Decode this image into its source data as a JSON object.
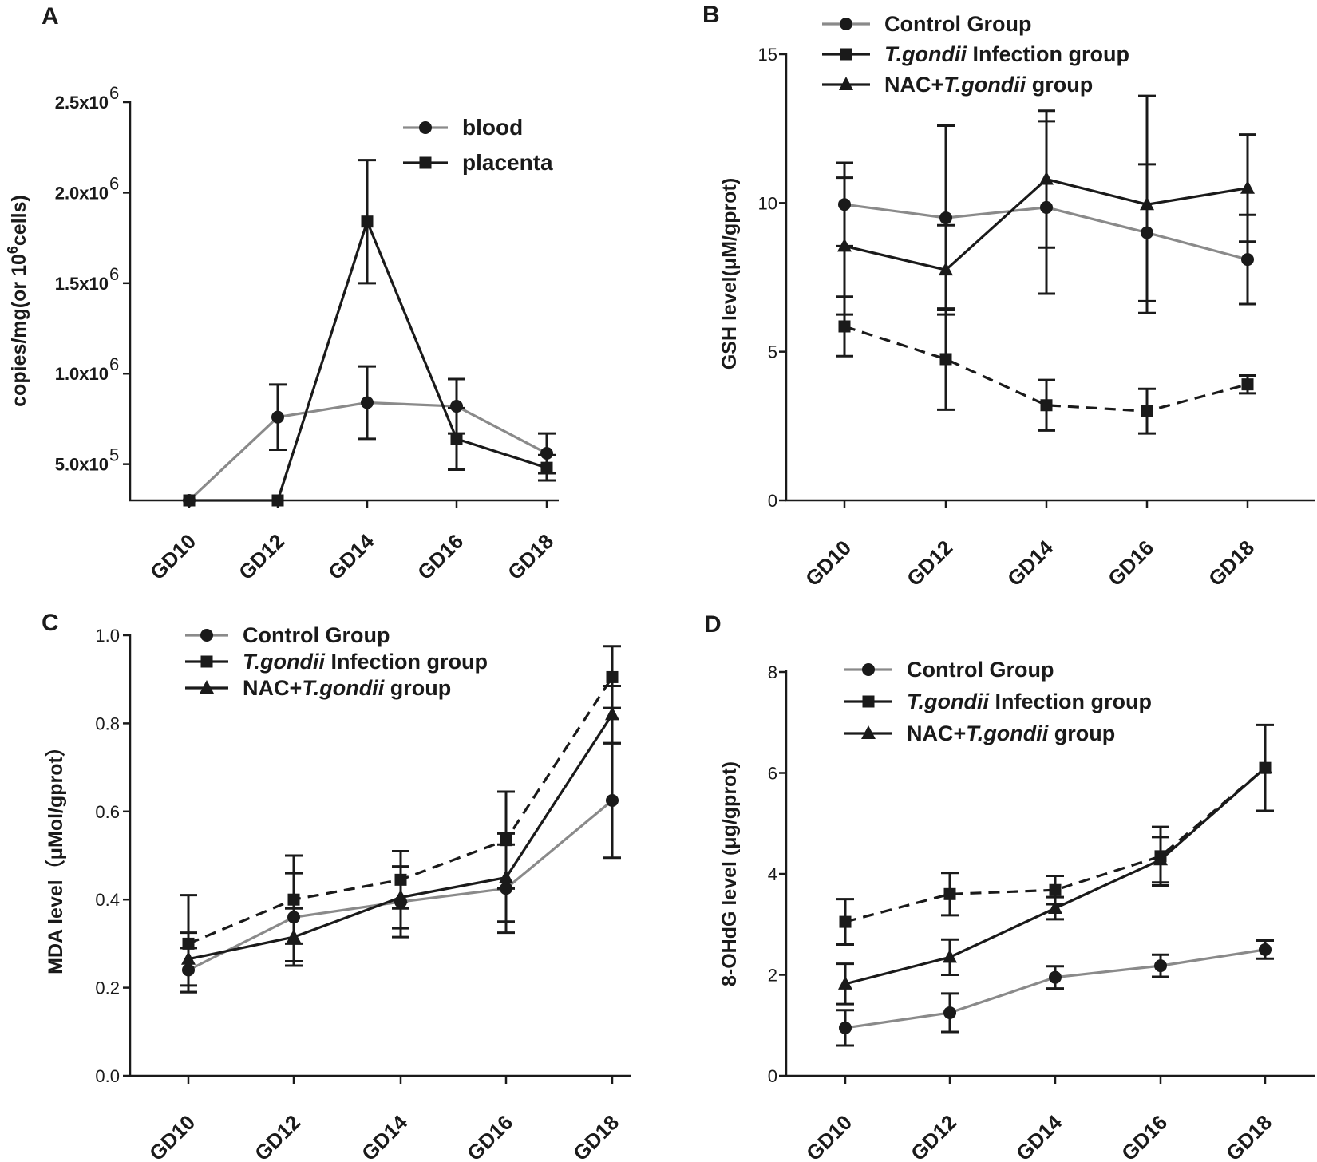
{
  "chart_data": [
    {
      "panel": "A",
      "type": "line",
      "ylabel": "copies/mg(or 10",
      "ylabel_sup": "6",
      "ylabel_tail": "cells)",
      "categories": [
        "GD10",
        "GD12",
        "GD14",
        "GD16",
        "GD18"
      ],
      "ylim": [
        300000,
        2500000
      ],
      "yticks": [
        {
          "value": 500000,
          "mant": "5.0x10",
          "exp": "5"
        },
        {
          "value": 1000000,
          "mant": "1.0x10",
          "exp": "6"
        },
        {
          "value": 1500000,
          "mant": "1.5x10",
          "exp": "6"
        },
        {
          "value": 2000000,
          "mant": "2.0x10",
          "exp": "6"
        },
        {
          "value": 2500000,
          "mant": "2.5x10",
          "exp": "6"
        }
      ],
      "series": [
        {
          "name": "blood",
          "color": "#8a8a8a",
          "marker": "circle",
          "dash": false,
          "values": [
            300000,
            760000,
            840000,
            820000,
            560000
          ],
          "errors": [
            0,
            180000,
            200000,
            150000,
            110000
          ]
        },
        {
          "name": "placenta",
          "color": "#1a1a1a",
          "marker": "square",
          "dash": false,
          "values": [
            300000,
            300000,
            1840000,
            640000,
            480000
          ],
          "errors": [
            0,
            0,
            340000,
            170000,
            70000
          ]
        }
      ]
    },
    {
      "panel": "B",
      "type": "line",
      "ylabel": "GSH level(μM/gprot)",
      "categories": [
        "GD10",
        "GD12",
        "GD14",
        "GD16",
        "GD18"
      ],
      "ylim": [
        0,
        15
      ],
      "yticks": [
        0,
        5,
        10,
        15
      ],
      "series": [
        {
          "name": "Control Group",
          "color": "#8a8a8a",
          "marker": "circle",
          "dash": false,
          "values": [
            9.95,
            9.5,
            9.85,
            9.0,
            8.1
          ],
          "errors": [
            1.4,
            3.1,
            2.9,
            2.3,
            1.5
          ]
        },
        {
          "name": "T.gondii Infection group",
          "name_ital": "T.gondii",
          "name_rest": " Infection group",
          "color": "#1a1a1a",
          "marker": "square",
          "dash": true,
          "values": [
            5.85,
            4.75,
            3.2,
            3.0,
            3.9
          ],
          "errors": [
            1.0,
            1.7,
            0.85,
            0.75,
            0.3
          ]
        },
        {
          "name": "NAC+T.gondii group",
          "name_pre": "NAC+",
          "name_ital": "T.gondii",
          "name_rest": " group",
          "color": "#1a1a1a",
          "marker": "triangle",
          "dash": false,
          "values": [
            8.55,
            7.75,
            10.8,
            9.95,
            10.5
          ],
          "errors": [
            2.3,
            1.5,
            2.3,
            3.65,
            1.8
          ]
        }
      ]
    },
    {
      "panel": "C",
      "type": "line",
      "ylabel": "MDA level（μMol/gprot）",
      "categories": [
        "GD10",
        "GD12",
        "GD14",
        "GD16",
        "GD18"
      ],
      "ylim": [
        0,
        1.0
      ],
      "yticks": [
        "0.0",
        "0.2",
        "0.4",
        "0.6",
        "0.8",
        "1.0"
      ],
      "series": [
        {
          "name": "Control Group",
          "color": "#8a8a8a",
          "marker": "circle",
          "dash": false,
          "values": [
            0.24,
            0.36,
            0.395,
            0.425,
            0.625
          ],
          "errors": [
            0.05,
            0.1,
            0.08,
            0.1,
            0.13
          ]
        },
        {
          "name": "T.gondii Infection group",
          "name_ital": "T.gondii",
          "name_rest": " Infection group",
          "color": "#1a1a1a",
          "marker": "square",
          "dash": true,
          "values": [
            0.3,
            0.4,
            0.445,
            0.535,
            0.905
          ],
          "errors": [
            0.11,
            0.1,
            0.065,
            0.11,
            0.07
          ]
        },
        {
          "name": "NAC+T.gondii group",
          "name_pre": "NAC+",
          "name_ital": "T.gondii",
          "name_rest": " group",
          "color": "#1a1a1a",
          "marker": "triangle",
          "dash": false,
          "values": [
            0.265,
            0.315,
            0.405,
            0.45,
            0.82
          ],
          "errors": [
            0.06,
            0.065,
            0.07,
            0.1,
            0.065
          ]
        }
      ]
    },
    {
      "panel": "D",
      "type": "line",
      "ylabel": "8-OHdG level (μg/gprot)",
      "categories": [
        "GD10",
        "GD12",
        "GD14",
        "GD16",
        "GD18"
      ],
      "ylim": [
        0,
        8
      ],
      "yticks": [
        0,
        2,
        4,
        6,
        8
      ],
      "series": [
        {
          "name": "Control Group",
          "color": "#8a8a8a",
          "marker": "circle",
          "dash": false,
          "values": [
            0.95,
            1.25,
            1.95,
            2.18,
            2.5
          ],
          "errors": [
            0.35,
            0.38,
            0.22,
            0.22,
            0.18
          ]
        },
        {
          "name": "T.gondii Infection group",
          "name_ital": "T.gondii",
          "name_rest": " Infection group",
          "color": "#1a1a1a",
          "marker": "square",
          "dash": true,
          "values": [
            3.05,
            3.6,
            3.68,
            4.35,
            6.1
          ],
          "errors": [
            0.45,
            0.42,
            0.28,
            0.58,
            0.85
          ]
        },
        {
          "name": "NAC+T.gondii group",
          "name_pre": "NAC+",
          "name_ital": "T.gondii",
          "name_rest": " group",
          "color": "#1a1a1a",
          "marker": "triangle",
          "dash": false,
          "values": [
            1.82,
            2.35,
            3.32,
            4.28,
            6.1
          ],
          "errors": [
            0.4,
            0.35,
            0.22,
            0.45,
            0.0
          ]
        }
      ]
    }
  ]
}
